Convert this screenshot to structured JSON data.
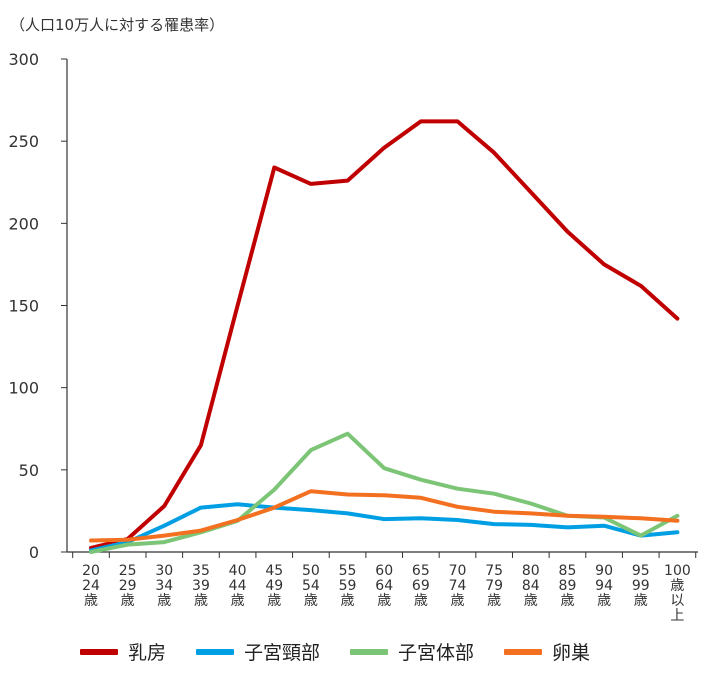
{
  "chart_data": {
    "type": "line",
    "title": "",
    "unit_note": "（人口10万人に対する罹患率）",
    "xlabel": "",
    "ylabel": "",
    "ylim": [
      0,
      300
    ],
    "yticks": [
      0,
      50,
      100,
      150,
      200,
      250,
      300
    ],
    "categories": [
      [
        "20",
        "24",
        "歳"
      ],
      [
        "25",
        "29",
        "歳"
      ],
      [
        "30",
        "34",
        "歳"
      ],
      [
        "35",
        "39",
        "歳"
      ],
      [
        "40",
        "44",
        "歳"
      ],
      [
        "45",
        "49",
        "歳"
      ],
      [
        "50",
        "54",
        "歳"
      ],
      [
        "55",
        "59",
        "歳"
      ],
      [
        "60",
        "64",
        "歳"
      ],
      [
        "65",
        "69",
        "歳"
      ],
      [
        "70",
        "74",
        "歳"
      ],
      [
        "75",
        "79",
        "歳"
      ],
      [
        "80",
        "84",
        "歳"
      ],
      [
        "85",
        "89",
        "歳"
      ],
      [
        "90",
        "94",
        "歳"
      ],
      [
        "95",
        "99",
        "歳"
      ],
      [
        "100",
        "歳",
        "以",
        "上"
      ]
    ],
    "legend_position": "bottom",
    "grid": false,
    "series": [
      {
        "name": "乳房",
        "color": "#c00000",
        "values": [
          2.5,
          8,
          28,
          65,
          150,
          234,
          224,
          226,
          246,
          262,
          262,
          243,
          219,
          195,
          175,
          162,
          142
        ]
      },
      {
        "name": "子宮頸部",
        "color": "#009fe3",
        "values": [
          1,
          6,
          16,
          27,
          29,
          27,
          25.5,
          23.5,
          20,
          20.5,
          19.5,
          17,
          16.5,
          15,
          16,
          10,
          12
        ]
      },
      {
        "name": "子宮体部",
        "color": "#7cc576",
        "values": [
          0,
          4.5,
          6,
          12,
          19,
          38,
          62,
          72,
          51,
          44,
          38.5,
          35.5,
          29.5,
          22,
          21,
          10,
          22
        ]
      },
      {
        "name": "卵巣",
        "color": "#f37021",
        "values": [
          7,
          7.5,
          10,
          13,
          19.5,
          27,
          37,
          35,
          34.5,
          33,
          27.5,
          24.5,
          23.5,
          22,
          21.5,
          20.5,
          19
        ]
      }
    ]
  }
}
